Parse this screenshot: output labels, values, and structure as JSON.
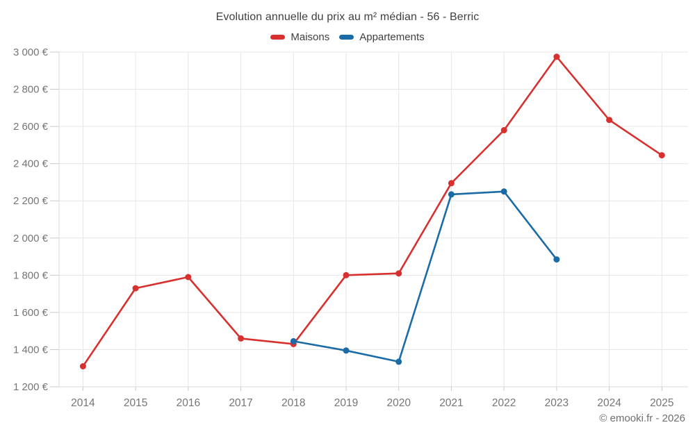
{
  "header": {
    "title": "Evolution annuelle du prix au m² médian - 56 - Berric"
  },
  "legend": [
    {
      "label": "Maisons",
      "color": "#d7302f"
    },
    {
      "label": "Appartements",
      "color": "#1b6ba7"
    }
  ],
  "footer": {
    "credit": "© emooki.fr - 2026"
  },
  "chart_data": {
    "type": "line",
    "title": "Evolution annuelle du prix au m² médian - 56 - Berric",
    "categories": [
      2014,
      2015,
      2016,
      2017,
      2018,
      2019,
      2020,
      2021,
      2022,
      2023,
      2024,
      2025
    ],
    "series": [
      {
        "name": "Maisons",
        "color": "#d7302f",
        "values": [
          1310,
          1730,
          1790,
          1460,
          1430,
          1800,
          1810,
          2295,
          2580,
          2975,
          2635,
          2445
        ]
      },
      {
        "name": "Appartements",
        "color": "#1b6ba7",
        "values": [
          null,
          null,
          null,
          null,
          1445,
          1395,
          1335,
          2235,
          2250,
          1885,
          null,
          null
        ]
      }
    ],
    "ylim": [
      1200,
      3000
    ],
    "y_ticks": [
      1200,
      1400,
      1600,
      1800,
      2000,
      2200,
      2400,
      2600,
      2800,
      3000
    ],
    "y_unit": "€",
    "grid": true,
    "legend_position": "top",
    "colors": {
      "gridline": "#e6e6e6",
      "axis_border": "#d8d8d8",
      "tick_mark": "#c9c9c9",
      "tick_label": "#757575"
    }
  }
}
